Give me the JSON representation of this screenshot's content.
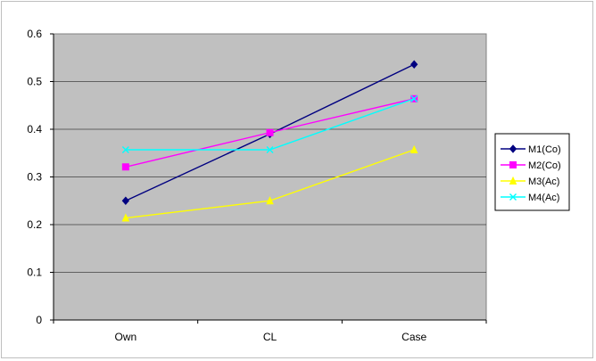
{
  "chart_data": {
    "type": "line",
    "title": "",
    "xlabel": "",
    "ylabel": "",
    "categories": [
      "Own",
      "CL",
      "Case"
    ],
    "ylim": [
      0,
      0.6
    ],
    "yticks": [
      "0",
      "0.1",
      "0.2",
      "0.3",
      "0.4",
      "0.5",
      "0.6"
    ],
    "grid": true,
    "legend_position": "right",
    "plot_background": "#c0c0c0",
    "series": [
      {
        "name": "M1(Co)",
        "values": [
          0.25,
          0.39,
          0.536
        ],
        "color": "#000080",
        "marker": "diamond"
      },
      {
        "name": "M2(Co)",
        "values": [
          0.321,
          0.393,
          0.464
        ],
        "color": "#ff00ff",
        "marker": "square"
      },
      {
        "name": "M3(Ac)",
        "values": [
          0.214,
          0.25,
          0.357
        ],
        "color": "#ffff00",
        "marker": "triangle"
      },
      {
        "name": "M4(Ac)",
        "values": [
          0.357,
          0.357,
          0.464
        ],
        "color": "#00ffff",
        "marker": "x"
      }
    ]
  }
}
